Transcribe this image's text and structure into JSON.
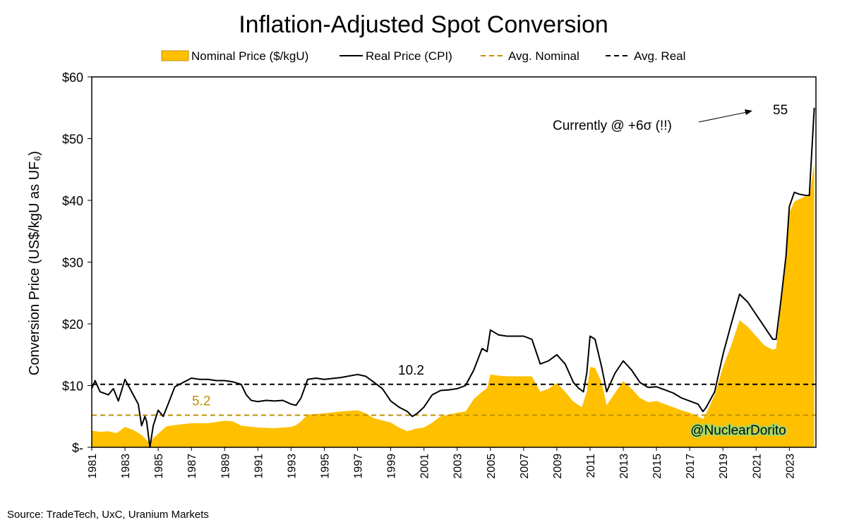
{
  "chart_data": {
    "type": "area",
    "title": "Inflation-Adjusted Spot Conversion",
    "ylabel": "Conversion Price (US$/kgU as UF₆)",
    "xlabel": "",
    "xlim": [
      1981,
      2024.6
    ],
    "ylim": [
      0,
      60
    ],
    "y_ticks": [
      {
        "value": 0,
        "label": "$-"
      },
      {
        "value": 10,
        "label": "$10"
      },
      {
        "value": 20,
        "label": "$20"
      },
      {
        "value": 30,
        "label": "$30"
      },
      {
        "value": 40,
        "label": "$40"
      },
      {
        "value": 50,
        "label": "$50"
      },
      {
        "value": 60,
        "label": "$60"
      }
    ],
    "x_ticks": [
      "1981",
      "1983",
      "1985",
      "1987",
      "1989",
      "1991",
      "1993",
      "1995",
      "1997",
      "1999",
      "2001",
      "2003",
      "2005",
      "2007",
      "2009",
      "2011",
      "2013",
      "2015",
      "2017",
      "2019",
      "2021",
      "2023"
    ],
    "grid": false,
    "legend_position": "top",
    "series": [
      {
        "name": "Nominal Price ($/kgU)",
        "style": "area",
        "color": "#FFC000",
        "x": [
          1981,
          1981.5,
          1982,
          1982.5,
          1983,
          1983.5,
          1984,
          1984.3,
          1984.5,
          1984.7,
          1985,
          1985.5,
          1986,
          1987,
          1988,
          1989,
          1989.5,
          1990,
          1991,
          1992,
          1993,
          1993.3,
          1993.6,
          1994,
          1995,
          1996,
          1997,
          1997.5,
          1998,
          1999,
          1999.5,
          2000,
          2000.5,
          2001,
          2001.5,
          2002,
          2003,
          2003.5,
          2004,
          2004.5,
          2004.8,
          2005,
          2005.5,
          2006,
          2007,
          2007.5,
          2008,
          2008.5,
          2009,
          2009.5,
          2010,
          2010.5,
          2010.8,
          2011,
          2011.3,
          2011.7,
          2012,
          2012.5,
          2013,
          2013.5,
          2014,
          2014.5,
          2015,
          2016,
          2016.5,
          2017,
          2017.5,
          2017.8,
          2018,
          2018.5,
          2019,
          2019.5,
          2020,
          2020.5,
          2021,
          2021.5,
          2022,
          2022.2,
          2022.5,
          2022.8,
          2023,
          2023.3,
          2023.6,
          2024,
          2024.2,
          2024.5
        ],
        "values": [
          2.7,
          2.5,
          2.6,
          2.3,
          3.3,
          2.8,
          2.0,
          1.2,
          0.5,
          1.5,
          2.2,
          3.4,
          3.6,
          3.9,
          3.9,
          4.3,
          4.2,
          3.5,
          3.2,
          3.1,
          3.3,
          3.6,
          4.2,
          5.3,
          5.5,
          5.8,
          6.0,
          5.5,
          4.7,
          4.0,
          3.2,
          2.6,
          3.0,
          3.2,
          4.0,
          5.0,
          5.6,
          5.8,
          7.8,
          9.0,
          9.6,
          11.8,
          11.6,
          11.5,
          11.5,
          11.5,
          9.0,
          9.5,
          10.4,
          9.0,
          7.4,
          6.5,
          9.0,
          13.0,
          12.9,
          10.5,
          6.8,
          8.8,
          10.7,
          9.5,
          8.0,
          7.3,
          7.5,
          6.5,
          6.0,
          5.6,
          5.0,
          4.6,
          5.5,
          8.5,
          13.0,
          16.5,
          20.6,
          19.5,
          18.0,
          16.5,
          15.8,
          16.0,
          23.0,
          30.0,
          38.0,
          39.8,
          40.2,
          40.7,
          40.7,
          46.0
        ]
      },
      {
        "name": "Real Price (CPI)",
        "style": "line",
        "color": "#000000",
        "x": [
          1981,
          1981.2,
          1981.5,
          1982,
          1982.3,
          1982.6,
          1983,
          1983.2,
          1983.5,
          1983.8,
          1984,
          1984.2,
          1984.3,
          1984.5,
          1984.7,
          1985,
          1985.3,
          1985.6,
          1986,
          1986.5,
          1987,
          1987.5,
          1988,
          1988.5,
          1989,
          1989.5,
          1990,
          1990.3,
          1990.6,
          1991,
          1991.5,
          1992,
          1992.5,
          1993,
          1993.3,
          1993.6,
          1994,
          1994.5,
          1995,
          1996,
          1997,
          1997.5,
          1998,
          1998.5,
          1999,
          1999.5,
          2000,
          2000.3,
          2000.6,
          2001,
          2001.5,
          2002,
          2002.5,
          2003,
          2003.5,
          2004,
          2004.5,
          2004.8,
          2005,
          2005.5,
          2006,
          2007,
          2007.5,
          2008,
          2008.5,
          2009,
          2009.5,
          2010,
          2010.3,
          2010.6,
          2010.8,
          2011,
          2011.3,
          2011.7,
          2012,
          2012.5,
          2013,
          2013.5,
          2014,
          2014.5,
          2015,
          2015.5,
          2016,
          2016.5,
          2017,
          2017.5,
          2017.8,
          2018,
          2018.5,
          2019,
          2019.5,
          2020,
          2020.5,
          2021,
          2021.5,
          2022,
          2022.2,
          2022.5,
          2022.8,
          2023,
          2023.3,
          2023.6,
          2024,
          2024.2,
          2024.5
        ],
        "values": [
          9.5,
          10.8,
          9.0,
          8.5,
          9.5,
          7.5,
          11.0,
          10.0,
          8.5,
          7.0,
          3.5,
          5.0,
          4.2,
          0.0,
          3.5,
          6.0,
          5.0,
          7.0,
          9.8,
          10.5,
          11.2,
          11.0,
          11.0,
          10.8,
          10.8,
          10.6,
          10.2,
          8.5,
          7.6,
          7.4,
          7.6,
          7.5,
          7.6,
          7.0,
          6.8,
          8.0,
          11.0,
          11.2,
          11.0,
          11.3,
          11.8,
          11.5,
          10.5,
          9.5,
          7.5,
          6.5,
          5.8,
          5.0,
          5.5,
          6.5,
          8.5,
          9.2,
          9.3,
          9.5,
          10.0,
          12.5,
          16.0,
          15.5,
          19.0,
          18.2,
          18.0,
          18.0,
          17.5,
          13.5,
          14.0,
          15.0,
          13.5,
          10.5,
          9.6,
          9.0,
          12.0,
          18.0,
          17.5,
          13.0,
          9.0,
          12.0,
          14.0,
          12.5,
          10.5,
          9.7,
          9.8,
          9.3,
          8.8,
          8.0,
          7.5,
          7.0,
          5.8,
          6.5,
          9.0,
          15.0,
          20.0,
          24.8,
          23.5,
          21.5,
          19.5,
          17.5,
          17.5,
          24.0,
          31.0,
          39.0,
          41.3,
          41.0,
          40.8,
          40.8,
          55.0
        ]
      },
      {
        "name": "Avg. Nominal",
        "style": "dashed",
        "color": "#BF8F00",
        "value": 5.2
      },
      {
        "name": "Avg. Real",
        "style": "dashed",
        "color": "#000000",
        "value": 10.2
      }
    ],
    "annotations": {
      "avg_real_label": "10.2",
      "avg_nominal_label": "5.2",
      "current_note": "Currently @ +6σ (!!)",
      "current_value": "55",
      "watermark": "@NuclearDorito"
    },
    "source": "Source: TradeTech, UxC, Uranium Markets"
  }
}
